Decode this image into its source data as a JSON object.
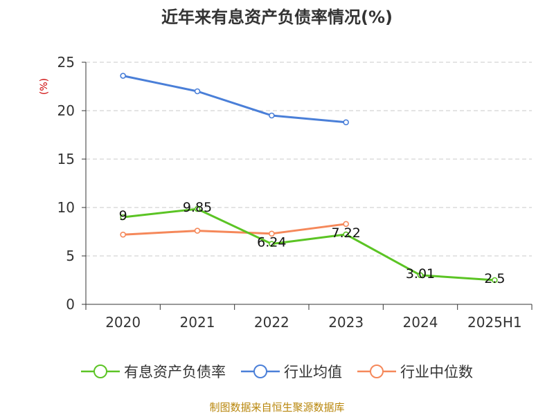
{
  "chart_data": {
    "type": "line",
    "title": "近年来有息资产负债率情况(%)",
    "ylabel": "(%)",
    "xlabel": "",
    "categories": [
      "2020",
      "2021",
      "2022",
      "2023",
      "2024",
      "2025H1"
    ],
    "ylim": [
      0,
      25
    ],
    "yticks": [
      0,
      5,
      10,
      15,
      20,
      25
    ],
    "grid": true,
    "legend_position": "bottom",
    "series": [
      {
        "name": "有息资产负债率",
        "color": "#5bc424",
        "values": [
          9,
          9.85,
          6.24,
          7.22,
          3.01,
          2.5
        ],
        "labels": [
          "9",
          "9.85",
          "6.24",
          "7.22",
          "3.01",
          "2.5"
        ]
      },
      {
        "name": "行业均值",
        "color": "#4a7fd8",
        "values": [
          23.6,
          22.0,
          19.5,
          18.8,
          null,
          null
        ]
      },
      {
        "name": "行业中位数",
        "color": "#f5885a",
        "values": [
          7.2,
          7.6,
          7.3,
          8.3,
          null,
          null
        ]
      }
    ]
  },
  "source": "制图数据来自恒生聚源数据库"
}
